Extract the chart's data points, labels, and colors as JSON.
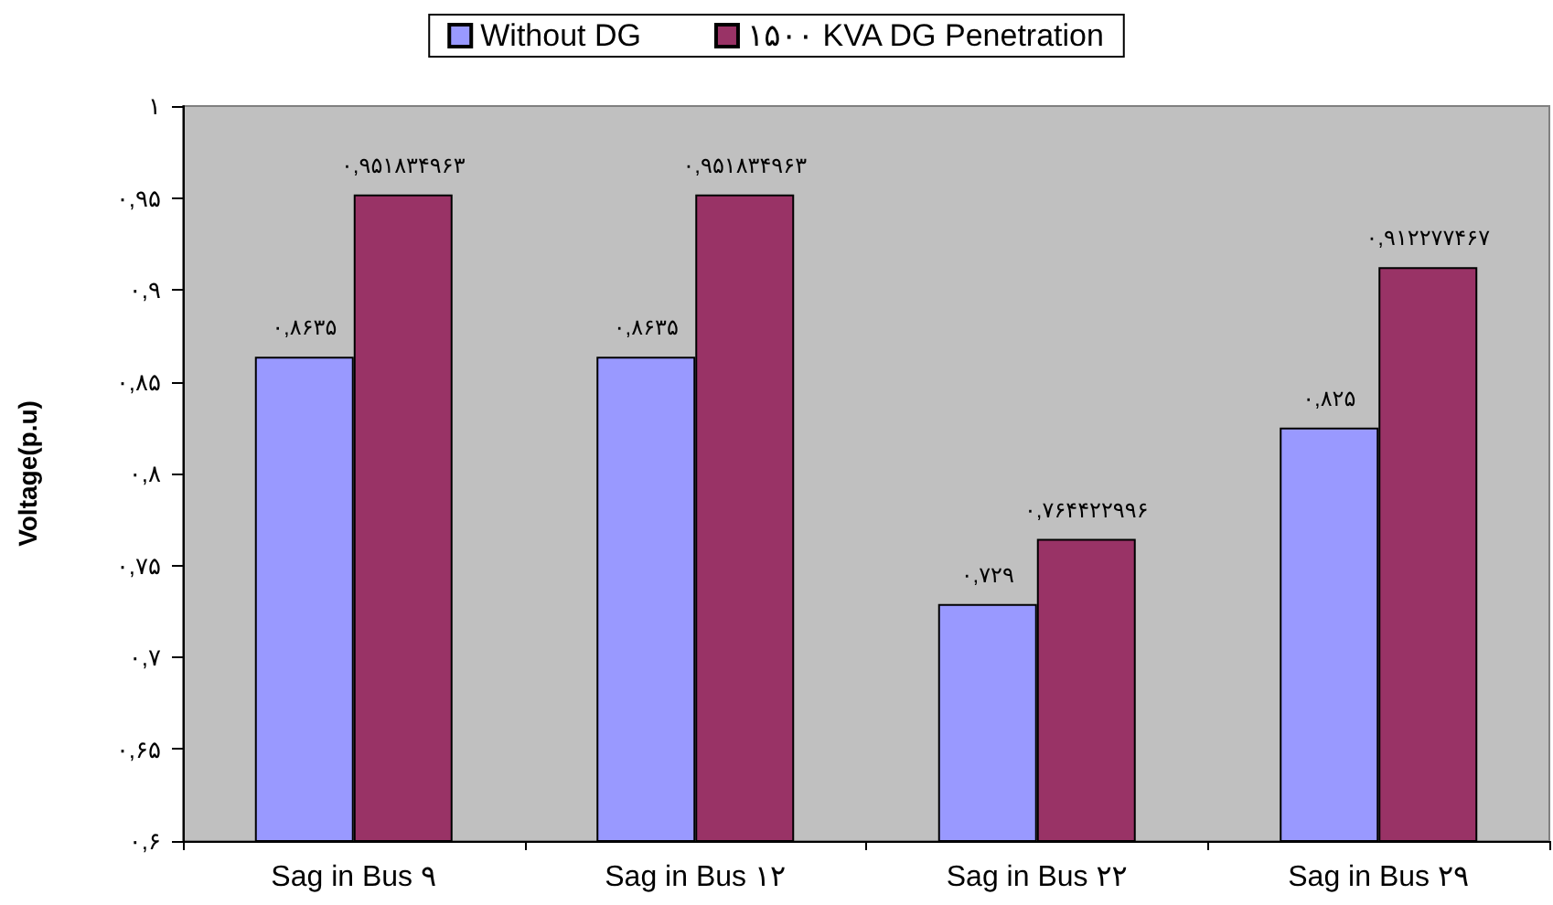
{
  "chart_data": {
    "type": "bar",
    "ylabel": "Voltage(p.u)",
    "categories": [
      "Sag in Bus ۹",
      "Sag in Bus ۱۲",
      "Sag in Bus ۲۲",
      "Sag in Bus ۲۹"
    ],
    "series": [
      {
        "name": "Without DG",
        "color": "#9999ff",
        "values": [
          0.8635,
          0.8635,
          0.729,
          0.825
        ],
        "value_labels": [
          "۰,۸۶۳۵",
          "۰,۸۶۳۵",
          "۰,۷۲۹",
          "۰,۸۲۵"
        ]
      },
      {
        "name": "۱۵۰۰ KVA DG Penetration",
        "color": "#993366",
        "values": [
          0.951834963,
          0.951834963,
          0.764422996,
          0.912277467
        ],
        "value_labels": [
          "۰,۹۵۱۸۳۴۹۶۳",
          "۰,۹۵۱۸۳۴۹۶۳",
          "۰,۷۶۴۴۲۲۹۹۶",
          "۰,۹۱۲۲۷۷۴۶۷"
        ]
      }
    ],
    "ylim": [
      0.6,
      1
    ],
    "yticks": [
      {
        "value": 0.6,
        "label": "۰,۶"
      },
      {
        "value": 0.65,
        "label": "۰,۶۵"
      },
      {
        "value": 0.7,
        "label": "۰,۷"
      },
      {
        "value": 0.75,
        "label": "۰,۷۵"
      },
      {
        "value": 0.8,
        "label": "۰,۸"
      },
      {
        "value": 0.85,
        "label": "۰,۸۵"
      },
      {
        "value": 0.9,
        "label": "۰,۹"
      },
      {
        "value": 0.95,
        "label": "۰,۹۵"
      },
      {
        "value": 1,
        "label": "۱"
      }
    ],
    "grid": false,
    "legend": "top"
  }
}
